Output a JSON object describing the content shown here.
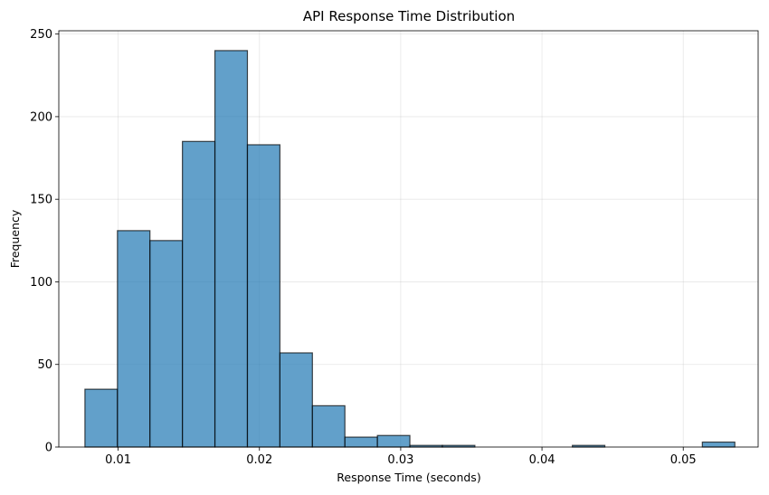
{
  "chart_data": {
    "type": "bar",
    "subtype": "histogram",
    "title": "API Response Time Distribution",
    "xlabel": "Response Time (seconds)",
    "ylabel": "Frequency",
    "xlim": [
      0.0058,
      0.0553
    ],
    "ylim": [
      0,
      252
    ],
    "xticks": [
      0.01,
      0.02,
      0.03,
      0.04,
      0.05
    ],
    "xtick_labels": [
      "0.01",
      "0.02",
      "0.03",
      "0.04",
      "0.05"
    ],
    "yticks": [
      0,
      50,
      100,
      150,
      200,
      250
    ],
    "ytick_labels": [
      "0",
      "50",
      "100",
      "150",
      "200",
      "250"
    ],
    "grid": true,
    "bar_color": "#1f77b4",
    "bar_alpha": 0.7,
    "edge_color": "#000000",
    "bins": [
      {
        "x0": 0.00765,
        "x1": 0.00995,
        "count": 35
      },
      {
        "x0": 0.00995,
        "x1": 0.01225,
        "count": 131
      },
      {
        "x0": 0.01225,
        "x1": 0.01455,
        "count": 125
      },
      {
        "x0": 0.01455,
        "x1": 0.01685,
        "count": 185
      },
      {
        "x0": 0.01685,
        "x1": 0.01915,
        "count": 240
      },
      {
        "x0": 0.01915,
        "x1": 0.02145,
        "count": 183
      },
      {
        "x0": 0.02145,
        "x1": 0.02375,
        "count": 57
      },
      {
        "x0": 0.02375,
        "x1": 0.02605,
        "count": 25
      },
      {
        "x0": 0.02605,
        "x1": 0.02835,
        "count": 6
      },
      {
        "x0": 0.02835,
        "x1": 0.03065,
        "count": 7
      },
      {
        "x0": 0.03065,
        "x1": 0.03295,
        "count": 1
      },
      {
        "x0": 0.03295,
        "x1": 0.03525,
        "count": 1
      },
      {
        "x0": 0.03525,
        "x1": 0.03755,
        "count": 0
      },
      {
        "x0": 0.03755,
        "x1": 0.03985,
        "count": 0
      },
      {
        "x0": 0.03985,
        "x1": 0.04215,
        "count": 0
      },
      {
        "x0": 0.04215,
        "x1": 0.04445,
        "count": 1
      },
      {
        "x0": 0.04445,
        "x1": 0.04675,
        "count": 0
      },
      {
        "x0": 0.04675,
        "x1": 0.04905,
        "count": 0
      },
      {
        "x0": 0.04905,
        "x1": 0.05135,
        "count": 0
      },
      {
        "x0": 0.05135,
        "x1": 0.05365,
        "count": 3
      }
    ]
  }
}
